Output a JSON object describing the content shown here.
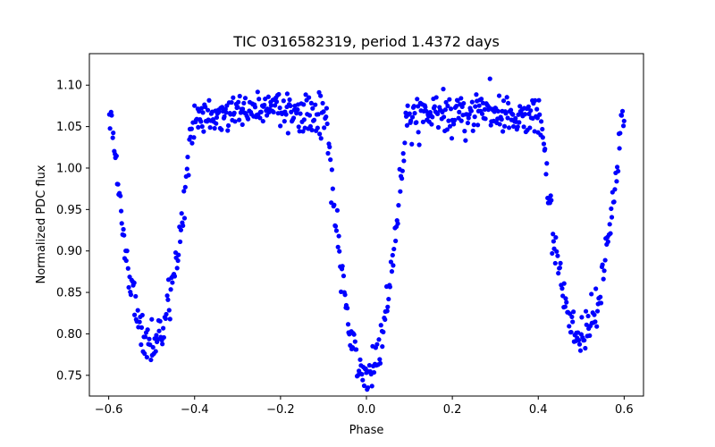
{
  "chart_data": {
    "type": "scatter",
    "title": "TIC 0316582319, period 1.4372 days",
    "xlabel": "Phase",
    "ylabel": "Normalized PDC flux",
    "xlim": [
      -0.645,
      0.645
    ],
    "ylim": [
      0.725,
      1.138
    ],
    "xticks": [
      -0.6,
      -0.4,
      -0.2,
      0.0,
      0.2,
      0.4,
      0.6
    ],
    "xtick_labels": [
      "−0.6",
      "−0.4",
      "−0.2",
      "0.0",
      "0.2",
      "0.4",
      "0.6"
    ],
    "yticks": [
      0.75,
      0.8,
      0.85,
      0.9,
      0.95,
      1.0,
      1.05,
      1.1
    ],
    "ytick_labels": [
      "0.75",
      "0.80",
      "0.85",
      "0.90",
      "0.95",
      "1.00",
      "1.05",
      "1.10"
    ],
    "grid": false,
    "marker_color": "#0000ff",
    "period_days": 1.4372,
    "phase_range": [
      -0.6,
      0.6
    ],
    "primary_eclipse": {
      "phase": 0.0,
      "min_flux": 0.755,
      "half_width": 0.093
    },
    "secondary_eclipse": {
      "phase": 0.5,
      "min_flux": 0.792,
      "half_width": 0.093
    },
    "maxima": [
      {
        "phase": -0.25,
        "flux": 1.072
      },
      {
        "phase": 0.25,
        "flux": 1.075
      }
    ],
    "num_points_per_cycle": 560
  }
}
